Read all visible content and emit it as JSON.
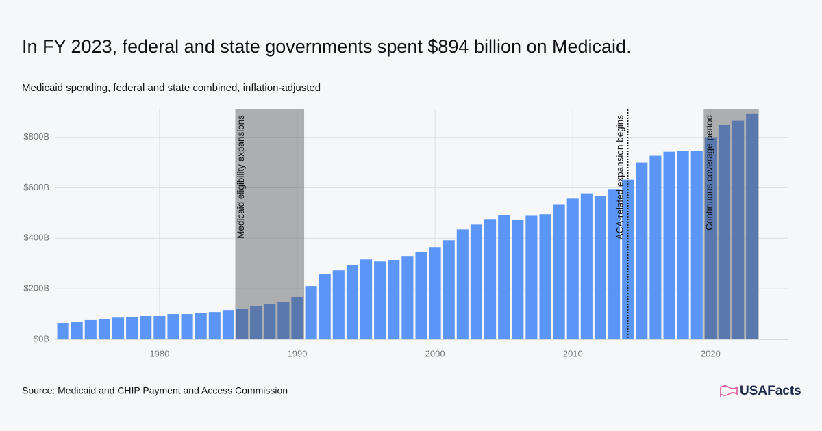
{
  "chart_data": {
    "type": "bar",
    "title": "In FY 2023, federal and state governments spent $894 billion on Medicaid.",
    "subtitle": "Medicaid spending, federal and state combined, inflation-adjusted",
    "source": "Source: Medicaid and CHIP Payment and Access Commission",
    "brand": "USAFacts",
    "color": "#5b96f7",
    "x": [
      1973,
      1974,
      1975,
      1976,
      1977,
      1978,
      1979,
      1980,
      1981,
      1982,
      1983,
      1984,
      1985,
      1986,
      1987,
      1988,
      1989,
      1990,
      1991,
      1992,
      1993,
      1994,
      1995,
      1996,
      1997,
      1998,
      1999,
      2000,
      2001,
      2002,
      2003,
      2004,
      2005,
      2006,
      2007,
      2008,
      2009,
      2010,
      2011,
      2012,
      2013,
      2014,
      2015,
      2016,
      2017,
      2018,
      2019,
      2020,
      2021,
      2022,
      2023
    ],
    "values": [
      65,
      70,
      76,
      81,
      86,
      89,
      92,
      92,
      100,
      100,
      105,
      108,
      116,
      122,
      132,
      138,
      149,
      168,
      211,
      259,
      273,
      295,
      316,
      308,
      314,
      330,
      346,
      365,
      392,
      435,
      454,
      476,
      492,
      473,
      489,
      495,
      535,
      557,
      578,
      568,
      595,
      632,
      700,
      727,
      743,
      746,
      746,
      800,
      849,
      865,
      894
    ],
    "xlim": [
      1972.4,
      2025.6
    ],
    "xticks": [
      1980,
      1990,
      2000,
      2010,
      2020
    ],
    "ylim": [
      0,
      910
    ],
    "yticks": [
      {
        "value": 0,
        "label": "$0B"
      },
      {
        "value": 200,
        "label": "$200B"
      },
      {
        "value": 400,
        "label": "$400B"
      },
      {
        "value": 600,
        "label": "$600B"
      },
      {
        "value": 800,
        "label": "$800B"
      }
    ],
    "grid": true,
    "annotations": [
      {
        "label": "Medicaid eligibility expansions",
        "x_start": 1985.5,
        "x_end": 1990.5
      },
      {
        "label": "ACA-related expansion begins",
        "x": 2014
      },
      {
        "label": "Continuous coverage period",
        "x_start": 2019.5,
        "x_end": 2023.5
      }
    ]
  }
}
